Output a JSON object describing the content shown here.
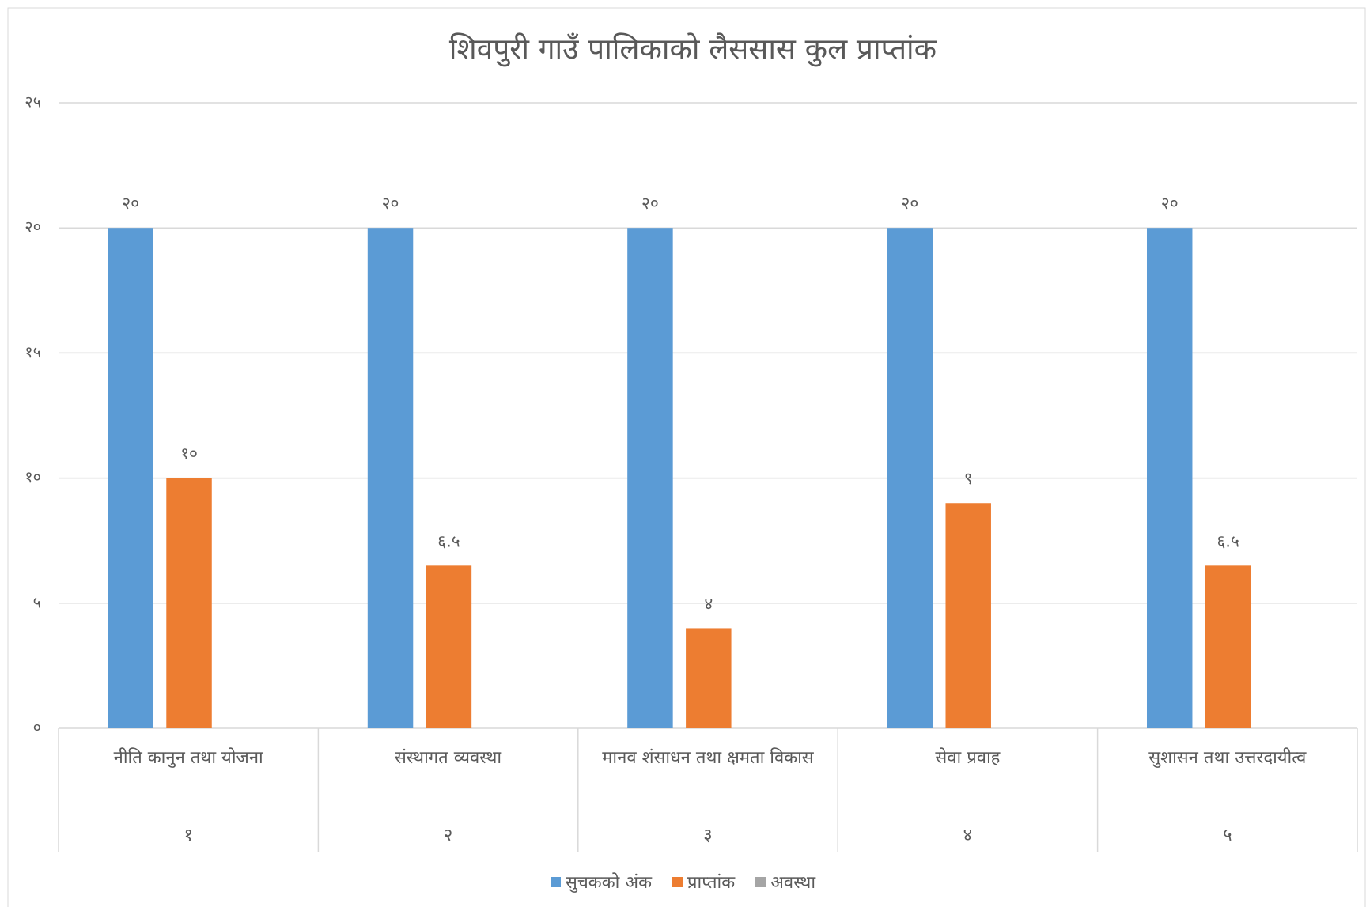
{
  "chart_data": {
    "type": "bar",
    "title": "शिवपुरी गाउँ पालिकाको लैससास कुल प्राप्तांक",
    "categories": [
      "नीति कानुन तथा योजना",
      "संस्थागत व्यवस्था",
      "मानव शंसाधन तथा क्षमता विकास",
      "सेवा प्रवाह",
      "सुशासन तथा उत्तरदायीत्व"
    ],
    "category_groups": [
      "१",
      "२",
      "३",
      "४",
      "५"
    ],
    "series": [
      {
        "name": "सुचकको अंक",
        "color": "#5b9bd5",
        "values": [
          20,
          20,
          20,
          20,
          20
        ],
        "value_labels": [
          "२०",
          "२०",
          "२०",
          "२०",
          "२०"
        ]
      },
      {
        "name": "प्राप्तांक",
        "color": "#ed7d31",
        "values": [
          10,
          6.5,
          4,
          9,
          6.5
        ],
        "value_labels": [
          "१०",
          "६.५",
          "४",
          "९",
          "६.५"
        ]
      },
      {
        "name": "अवस्था",
        "color": "#a5a5a5",
        "values": [
          null,
          null,
          null,
          null,
          null
        ]
      }
    ],
    "ylim": [
      0,
      25
    ],
    "yticks": [
      {
        "value": 0,
        "label": "०"
      },
      {
        "value": 5,
        "label": "५"
      },
      {
        "value": 10,
        "label": "१०"
      },
      {
        "value": 15,
        "label": "१५"
      },
      {
        "value": 20,
        "label": "२०"
      },
      {
        "value": 25,
        "label": "२५"
      }
    ],
    "grid": true,
    "legend": "bottom"
  }
}
